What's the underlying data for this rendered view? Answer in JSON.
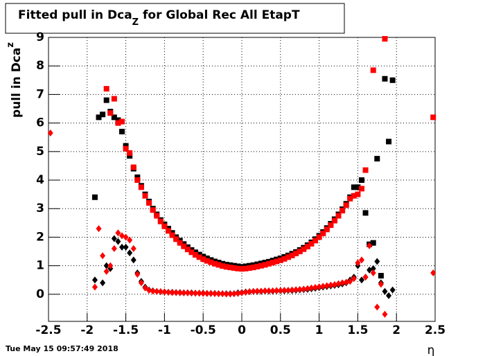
{
  "chart_data": {
    "type": "scatter",
    "title": {
      "main": "Fitted pull in Dca",
      "sub": "Z",
      "rest": " for Global Rec All EtapT"
    },
    "y_label": {
      "main": "pull in Dca",
      "sub": "z"
    },
    "x_label": "η",
    "timestamp": "Tue May 15 09:57:49 2018",
    "xlim": [
      -2.5,
      2.5
    ],
    "ylim": [
      -0.95,
      9
    ],
    "xticks": [
      -2.5,
      -2,
      -1.5,
      -1,
      -0.5,
      0,
      0.5,
      1,
      1.5,
      2,
      2.5
    ],
    "yticks": [
      0,
      1,
      2,
      3,
      4,
      5,
      6,
      7,
      8,
      9
    ],
    "grid": true,
    "x": [
      -1.9,
      -1.85,
      -1.8,
      -1.75,
      -1.7,
      -1.65,
      -1.6,
      -1.55,
      -1.5,
      -1.45,
      -1.4,
      -1.35,
      -1.3,
      -1.25,
      -1.2,
      -1.15,
      -1.1,
      -1.05,
      -1,
      -0.95,
      -0.9,
      -0.85,
      -0.8,
      -0.75,
      -0.7,
      -0.65,
      -0.6,
      -0.55,
      -0.5,
      -0.45,
      -0.4,
      -0.35,
      -0.3,
      -0.25,
      -0.2,
      -0.15,
      -0.1,
      -0.05,
      0,
      0.05,
      0.1,
      0.15,
      0.2,
      0.25,
      0.3,
      0.35,
      0.4,
      0.45,
      0.5,
      0.55,
      0.6,
      0.65,
      0.7,
      0.75,
      0.8,
      0.85,
      0.9,
      0.95,
      1,
      1.05,
      1.1,
      1.15,
      1.2,
      1.25,
      1.3,
      1.35,
      1.4,
      1.45,
      1.5,
      1.55,
      1.6,
      1.65,
      1.7,
      1.75,
      1.8,
      1.85,
      1.9,
      1.95
    ],
    "series": [
      {
        "color": "#000000",
        "marker": "square",
        "values": [
          3.4,
          6.2,
          6.3,
          6.8,
          6.4,
          6.2,
          6.1,
          5.7,
          5.2,
          4.85,
          4.4,
          4.1,
          3.8,
          3.5,
          3.25,
          3.0,
          2.8,
          2.6,
          2.45,
          2.3,
          2.15,
          2.0,
          1.88,
          1.76,
          1.65,
          1.55,
          1.47,
          1.39,
          1.32,
          1.26,
          1.2,
          1.15,
          1.11,
          1.07,
          1.04,
          1.02,
          1.0,
          0.98,
          0.96,
          0.98,
          1.0,
          1.02,
          1.05,
          1.08,
          1.11,
          1.14,
          1.18,
          1.22,
          1.26,
          1.31,
          1.36,
          1.42,
          1.48,
          1.55,
          1.63,
          1.72,
          1.82,
          1.93,
          2.05,
          2.18,
          2.32,
          2.47,
          2.63,
          2.8,
          2.98,
          3.17,
          3.4,
          3.75,
          3.75,
          4.0,
          2.85,
          1.75,
          1.8,
          4.75,
          0.65,
          7.55,
          5.35,
          7.5
        ]
      },
      {
        "color": "#ff0000",
        "marker": "square",
        "values": [
          null,
          null,
          null,
          7.2,
          6.35,
          6.85,
          6.0,
          6.05,
          5.1,
          4.95,
          4.45,
          4.0,
          3.75,
          3.45,
          3.2,
          2.95,
          2.75,
          2.55,
          2.38,
          2.22,
          2.07,
          1.93,
          1.8,
          1.68,
          1.57,
          1.47,
          1.38,
          1.3,
          1.23,
          1.17,
          1.12,
          1.07,
          1.03,
          0.99,
          0.96,
          0.94,
          0.92,
          0.9,
          0.89,
          0.9,
          0.92,
          0.94,
          0.97,
          1.0,
          1.03,
          1.07,
          1.11,
          1.15,
          1.19,
          1.24,
          1.3,
          1.36,
          1.43,
          1.5,
          1.58,
          1.67,
          1.77,
          1.88,
          2.0,
          2.13,
          2.27,
          2.42,
          2.58,
          2.75,
          2.93,
          3.12,
          3.35,
          3.45,
          3.5,
          3.7,
          4.35,
          null,
          7.85,
          null,
          null,
          8.95,
          null,
          null
        ]
      },
      {
        "color": "#000000",
        "marker": "diamond",
        "values": [
          0.5,
          null,
          0.4,
          1.0,
          0.9,
          1.95,
          1.85,
          1.65,
          1.65,
          1.45,
          1.2,
          0.75,
          0.45,
          0.25,
          0.15,
          0.12,
          0.1,
          0.09,
          0.08,
          0.07,
          0.07,
          0.06,
          0.06,
          0.05,
          0.05,
          0.05,
          0.04,
          0.04,
          0.04,
          0.03,
          0.03,
          0.03,
          0.02,
          0.02,
          0.02,
          0.02,
          0.02,
          0.05,
          0.06,
          0.08,
          0.09,
          0.1,
          0.1,
          0.1,
          0.11,
          0.11,
          0.11,
          0.12,
          0.12,
          0.12,
          0.13,
          0.13,
          0.14,
          0.15,
          0.16,
          0.17,
          0.19,
          0.21,
          0.23,
          0.25,
          0.27,
          0.29,
          0.31,
          0.33,
          0.36,
          0.4,
          0.5,
          0.6,
          1.0,
          0.5,
          0.6,
          0.85,
          0.9,
          1.15,
          0.4,
          0.1,
          -0.05,
          0.15
        ]
      },
      {
        "color": "#ff0000",
        "marker": "diamond",
        "values": [
          0.25,
          2.3,
          1.35,
          0.8,
          1.0,
          1.6,
          2.15,
          2.05,
          2.0,
          1.9,
          1.6,
          0.7,
          0.4,
          0.22,
          0.14,
          0.11,
          0.1,
          0.09,
          0.08,
          0.07,
          0.06,
          0.06,
          0.05,
          0.05,
          0.05,
          0.04,
          0.04,
          0.04,
          0.03,
          0.03,
          0.03,
          0.02,
          0.02,
          0.02,
          0.01,
          0.01,
          0.02,
          0.03,
          0.05,
          0.07,
          0.09,
          0.1,
          0.11,
          0.11,
          0.12,
          0.12,
          0.12,
          0.13,
          0.13,
          0.14,
          0.14,
          0.15,
          0.16,
          0.17,
          0.18,
          0.2,
          0.22,
          0.24,
          0.26,
          0.28,
          0.3,
          0.32,
          0.34,
          0.37,
          0.4,
          0.42,
          0.45,
          0.55,
          1.1,
          1.2,
          0.6,
          1.7,
          0.75,
          -0.45,
          0.35,
          -0.7,
          null,
          null
        ]
      },
      {
        "color": "#ff0000",
        "marker": "square",
        "x": [
          2.475
        ],
        "values": [
          6.2
        ]
      },
      {
        "color": "#ff0000",
        "marker": "diamond",
        "x": [
          -2.475,
          2.475
        ],
        "values": [
          5.65,
          0.75
        ]
      }
    ]
  }
}
